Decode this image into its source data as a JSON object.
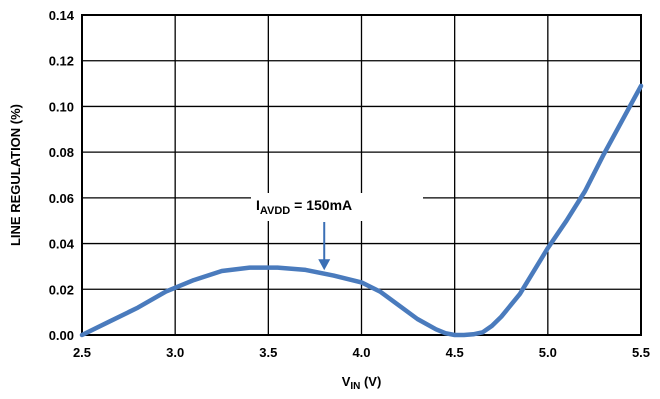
{
  "chart_data": {
    "type": "line",
    "title": "",
    "xlabel": {
      "main": "V",
      "sub": "IN",
      "unit": " (V)"
    },
    "ylabel": "LINE REGULATION (%)",
    "xlim": [
      2.5,
      5.5
    ],
    "ylim": [
      0.0,
      0.14
    ],
    "xticks": [
      "2.5",
      "3.0",
      "3.5",
      "4.0",
      "4.5",
      "5.0",
      "5.5"
    ],
    "yticks": [
      "0.00",
      "0.02",
      "0.04",
      "0.06",
      "0.08",
      "0.10",
      "0.12",
      "0.14"
    ],
    "grid": true,
    "line_color": "#4a7bbd",
    "series": [
      {
        "x": [
          2.5,
          2.65,
          2.8,
          2.95,
          3.1,
          3.25,
          3.4,
          3.55,
          3.7,
          3.85,
          4.0,
          4.1,
          4.2,
          4.3,
          4.4,
          4.45,
          4.5,
          4.55,
          4.6,
          4.65,
          4.7,
          4.75,
          4.85,
          5.0,
          5.1,
          5.2,
          5.3,
          5.4,
          5.5
        ],
        "y": [
          0.0,
          0.006,
          0.012,
          0.019,
          0.024,
          0.028,
          0.0295,
          0.0295,
          0.0285,
          0.026,
          0.023,
          0.019,
          0.013,
          0.007,
          0.0025,
          0.0008,
          0.0,
          0.0,
          0.0003,
          0.0012,
          0.004,
          0.008,
          0.018,
          0.038,
          0.05,
          0.063,
          0.079,
          0.094,
          0.109
        ]
      }
    ],
    "annotation": {
      "main": "I",
      "sub": "AVDD",
      "text": " = 150mA",
      "x": 3.8,
      "y": 0.027
    }
  }
}
